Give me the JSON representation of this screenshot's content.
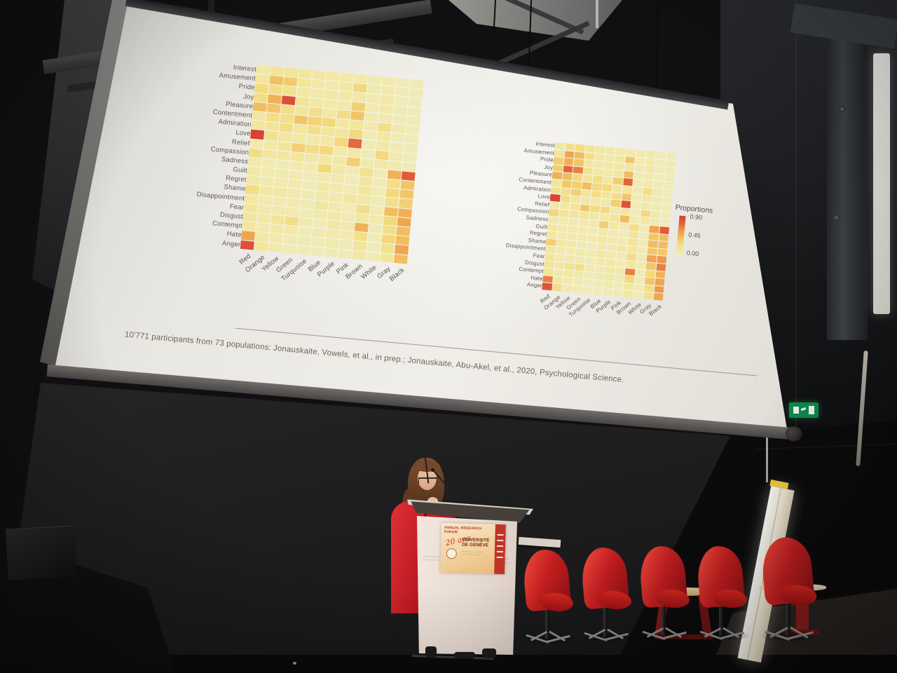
{
  "slide": {
    "caption": "10'771 participants from 73 populations: Jonauskaite, Vowels, et al., in prep.; Jonauskaite, Abu-Akel, et al., 2020, Psychological Science.",
    "legend": {
      "title": "Proportions",
      "ticks": [
        "0.90",
        "0.45",
        "0.00"
      ]
    }
  },
  "podium_sign": {
    "header": "ANNUAL RESEARCH FORUM",
    "script": "20 ans",
    "org1": "UNIVERSITÉ",
    "org2": "DE GENÈVE"
  },
  "icons": {
    "exit_sign": "exit-running-man-icon"
  },
  "colors": {
    "chair_red": "#c41e20",
    "heat_low": "#efecbe",
    "heat_mid": "#f1bd5e",
    "heat_high": "#d83a33",
    "exit_green": "#0f8a4d"
  },
  "chart_data": [
    {
      "type": "heatmap",
      "title": "",
      "position": "left",
      "rows": [
        "Interest",
        "Amusement",
        "Pride",
        "Joy",
        "Pleasure",
        "Contentment",
        "Admiration",
        "Love",
        "Relief",
        "Compassion",
        "Sadness",
        "Guilt",
        "Regret",
        "Shame",
        "Disappointment",
        "Fear",
        "Disgust",
        "Contempt",
        "Hate",
        "Anger"
      ],
      "columns": [
        "Red",
        "Orange",
        "Yellow",
        "Green",
        "Turquoise",
        "Blue",
        "Purple",
        "Pink",
        "Brown",
        "White",
        "Gray",
        "Black"
      ],
      "value_range": [
        0.0,
        0.9
      ],
      "legend_title": "Proportions",
      "x_label_rotation": 45,
      "values": [
        [
          0.15,
          0.22,
          0.22,
          0.2,
          0.15,
          0.15,
          0.12,
          0.12,
          0.08,
          0.1,
          0.06,
          0.05
        ],
        [
          0.2,
          0.48,
          0.42,
          0.2,
          0.15,
          0.12,
          0.15,
          0.35,
          0.08,
          0.1,
          0.05,
          0.05
        ],
        [
          0.32,
          0.3,
          0.25,
          0.15,
          0.12,
          0.15,
          0.15,
          0.15,
          0.08,
          0.12,
          0.05,
          0.05
        ],
        [
          0.3,
          0.55,
          0.85,
          0.22,
          0.15,
          0.12,
          0.12,
          0.4,
          0.05,
          0.12,
          0.05,
          0.05
        ],
        [
          0.5,
          0.45,
          0.3,
          0.2,
          0.28,
          0.15,
          0.3,
          0.45,
          0.08,
          0.1,
          0.05,
          0.05
        ],
        [
          0.18,
          0.3,
          0.28,
          0.45,
          0.38,
          0.35,
          0.15,
          0.2,
          0.08,
          0.28,
          0.1,
          0.05
        ],
        [
          0.2,
          0.22,
          0.3,
          0.2,
          0.28,
          0.2,
          0.2,
          0.35,
          0.06,
          0.15,
          0.06,
          0.05
        ],
        [
          0.88,
          0.25,
          0.18,
          0.15,
          0.12,
          0.15,
          0.35,
          0.78,
          0.05,
          0.15,
          0.05,
          0.05
        ],
        [
          0.1,
          0.15,
          0.2,
          0.4,
          0.3,
          0.35,
          0.1,
          0.15,
          0.05,
          0.35,
          0.1,
          0.05
        ],
        [
          0.3,
          0.2,
          0.18,
          0.2,
          0.15,
          0.15,
          0.15,
          0.4,
          0.08,
          0.15,
          0.08,
          0.06
        ],
        [
          0.1,
          0.06,
          0.06,
          0.1,
          0.08,
          0.35,
          0.15,
          0.06,
          0.25,
          0.06,
          0.55,
          0.82
        ],
        [
          0.15,
          0.1,
          0.1,
          0.1,
          0.06,
          0.1,
          0.1,
          0.06,
          0.2,
          0.06,
          0.3,
          0.45
        ],
        [
          0.15,
          0.1,
          0.1,
          0.1,
          0.06,
          0.15,
          0.1,
          0.06,
          0.2,
          0.06,
          0.35,
          0.45
        ],
        [
          0.3,
          0.15,
          0.15,
          0.1,
          0.06,
          0.1,
          0.1,
          0.18,
          0.15,
          0.06,
          0.28,
          0.4
        ],
        [
          0.15,
          0.1,
          0.08,
          0.12,
          0.06,
          0.2,
          0.1,
          0.06,
          0.28,
          0.06,
          0.5,
          0.55
        ],
        [
          0.2,
          0.1,
          0.1,
          0.1,
          0.06,
          0.1,
          0.15,
          0.06,
          0.18,
          0.1,
          0.35,
          0.6
        ],
        [
          0.2,
          0.15,
          0.22,
          0.3,
          0.08,
          0.06,
          0.15,
          0.1,
          0.55,
          0.05,
          0.28,
          0.5
        ],
        [
          0.2,
          0.1,
          0.15,
          0.12,
          0.06,
          0.1,
          0.1,
          0.06,
          0.28,
          0.05,
          0.35,
          0.5
        ],
        [
          0.6,
          0.15,
          0.1,
          0.08,
          0.05,
          0.06,
          0.1,
          0.06,
          0.2,
          0.05,
          0.25,
          0.6
        ],
        [
          0.85,
          0.2,
          0.1,
          0.06,
          0.05,
          0.05,
          0.06,
          0.05,
          0.15,
          0.05,
          0.2,
          0.5
        ]
      ]
    },
    {
      "type": "heatmap",
      "title": "",
      "position": "right",
      "rows": [
        "Interest",
        "Amusement",
        "Pride",
        "Joy",
        "Pleasure",
        "Contentment",
        "Admiration",
        "Love",
        "Relief",
        "Compassion",
        "Sadness",
        "Guilt",
        "Regret",
        "Shame",
        "Disappointment",
        "Fear",
        "Disgust",
        "Contempt",
        "Hate",
        "Anger"
      ],
      "columns": [
        "Red",
        "Orange",
        "Yellow",
        "Green",
        "Turquoise",
        "Blue",
        "Purple",
        "Pink",
        "Brown",
        "White",
        "Gray",
        "Black"
      ],
      "value_range": [
        0.0,
        0.9
      ],
      "legend_title": "Proportions",
      "legend_position": "right",
      "x_label_rotation": 45,
      "values": [
        [
          0.18,
          0.28,
          0.3,
          0.22,
          0.15,
          0.15,
          0.12,
          0.12,
          0.08,
          0.1,
          0.06,
          0.06
        ],
        [
          0.22,
          0.6,
          0.5,
          0.3,
          0.18,
          0.12,
          0.18,
          0.45,
          0.08,
          0.1,
          0.06,
          0.06
        ],
        [
          0.4,
          0.55,
          0.45,
          0.18,
          0.12,
          0.15,
          0.18,
          0.18,
          0.08,
          0.12,
          0.06,
          0.06
        ],
        [
          0.4,
          0.8,
          0.72,
          0.25,
          0.18,
          0.12,
          0.15,
          0.5,
          0.06,
          0.12,
          0.06,
          0.06
        ],
        [
          0.55,
          0.5,
          0.35,
          0.22,
          0.3,
          0.18,
          0.4,
          0.8,
          0.08,
          0.1,
          0.06,
          0.06
        ],
        [
          0.2,
          0.45,
          0.4,
          0.5,
          0.35,
          0.35,
          0.18,
          0.22,
          0.08,
          0.3,
          0.1,
          0.06
        ],
        [
          0.25,
          0.28,
          0.4,
          0.22,
          0.3,
          0.22,
          0.3,
          0.45,
          0.06,
          0.15,
          0.06,
          0.06
        ],
        [
          0.88,
          0.3,
          0.2,
          0.15,
          0.12,
          0.15,
          0.4,
          0.84,
          0.06,
          0.15,
          0.06,
          0.06
        ],
        [
          0.12,
          0.18,
          0.22,
          0.45,
          0.32,
          0.35,
          0.12,
          0.18,
          0.06,
          0.35,
          0.1,
          0.06
        ],
        [
          0.35,
          0.22,
          0.2,
          0.22,
          0.15,
          0.15,
          0.18,
          0.5,
          0.08,
          0.15,
          0.08,
          0.06
        ],
        [
          0.12,
          0.08,
          0.08,
          0.1,
          0.08,
          0.4,
          0.18,
          0.06,
          0.28,
          0.06,
          0.6,
          0.82
        ],
        [
          0.18,
          0.1,
          0.1,
          0.1,
          0.06,
          0.1,
          0.1,
          0.06,
          0.22,
          0.06,
          0.45,
          0.5
        ],
        [
          0.18,
          0.1,
          0.1,
          0.1,
          0.06,
          0.15,
          0.1,
          0.06,
          0.22,
          0.06,
          0.5,
          0.5
        ],
        [
          0.4,
          0.18,
          0.15,
          0.1,
          0.06,
          0.1,
          0.1,
          0.18,
          0.18,
          0.06,
          0.45,
          0.45
        ],
        [
          0.18,
          0.1,
          0.08,
          0.12,
          0.06,
          0.2,
          0.1,
          0.06,
          0.3,
          0.06,
          0.6,
          0.65
        ],
        [
          0.22,
          0.1,
          0.1,
          0.1,
          0.06,
          0.1,
          0.15,
          0.06,
          0.2,
          0.1,
          0.45,
          0.72
        ],
        [
          0.22,
          0.18,
          0.25,
          0.3,
          0.08,
          0.06,
          0.15,
          0.1,
          0.72,
          0.05,
          0.35,
          0.55
        ],
        [
          0.22,
          0.1,
          0.15,
          0.12,
          0.06,
          0.1,
          0.1,
          0.06,
          0.35,
          0.05,
          0.45,
          0.6
        ],
        [
          0.72,
          0.18,
          0.1,
          0.08,
          0.05,
          0.06,
          0.1,
          0.06,
          0.2,
          0.05,
          0.3,
          0.65
        ],
        [
          0.84,
          0.3,
          0.1,
          0.06,
          0.05,
          0.05,
          0.06,
          0.05,
          0.15,
          0.05,
          0.25,
          0.6
        ]
      ]
    }
  ]
}
